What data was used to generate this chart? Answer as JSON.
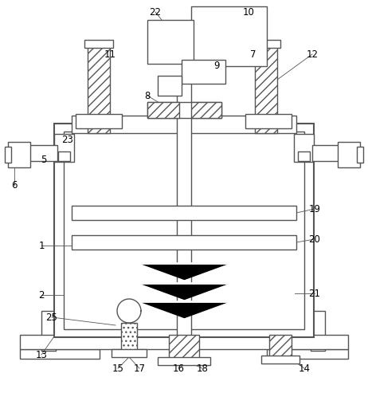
{
  "lc": "#555555",
  "lw": 1.0,
  "lw2": 1.5,
  "bg": "white"
}
